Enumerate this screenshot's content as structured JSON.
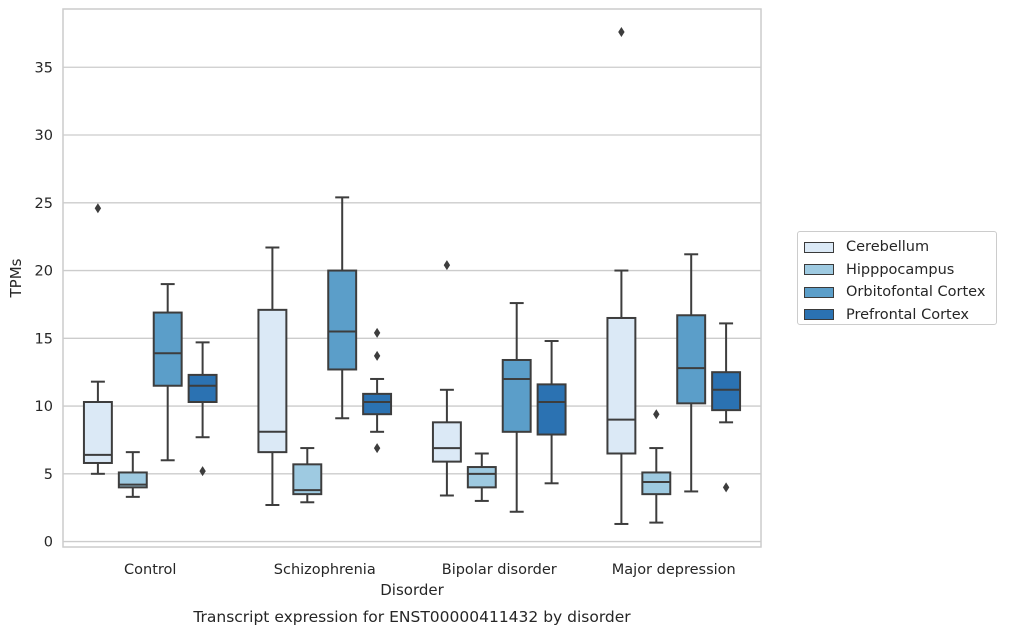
{
  "chart_data": {
    "type": "box",
    "title": "Transcript expression for ENST00000411432 by disorder",
    "xlabel": "Disorder",
    "ylabel": "TPMs",
    "ylim": [
      -0.4,
      39.3
    ],
    "yticks": [
      0,
      5,
      10,
      15,
      20,
      25,
      30,
      35
    ],
    "categories": [
      "Control",
      "Schizophrenia",
      "Bipolar disorder",
      "Major depression"
    ],
    "grid": "horizontal",
    "legend_position": "right",
    "series": [
      {
        "name": "Cerebellum",
        "color": "#dbe9f6",
        "boxes": [
          {
            "whislo": 5.0,
            "q1": 5.8,
            "med": 6.4,
            "q3": 10.3,
            "whishi": 11.8,
            "fliers": [
              24.6
            ]
          },
          {
            "whislo": 2.7,
            "q1": 6.6,
            "med": 8.1,
            "q3": 17.1,
            "whishi": 21.7,
            "fliers": []
          },
          {
            "whislo": 3.4,
            "q1": 5.9,
            "med": 6.9,
            "q3": 8.8,
            "whishi": 11.2,
            "fliers": [
              20.4
            ]
          },
          {
            "whislo": 1.3,
            "q1": 6.5,
            "med": 9.0,
            "q3": 16.5,
            "whishi": 20.0,
            "fliers": [
              37.6
            ]
          }
        ]
      },
      {
        "name": "Hipppocampus",
        "color": "#9ecae1",
        "boxes": [
          {
            "whislo": 3.3,
            "q1": 4.0,
            "med": 4.2,
            "q3": 5.1,
            "whishi": 6.6,
            "fliers": []
          },
          {
            "whislo": 2.9,
            "q1": 3.5,
            "med": 3.8,
            "q3": 5.7,
            "whishi": 6.9,
            "fliers": []
          },
          {
            "whislo": 3.0,
            "q1": 4.0,
            "med": 5.0,
            "q3": 5.5,
            "whishi": 6.5,
            "fliers": []
          },
          {
            "whislo": 1.4,
            "q1": 3.5,
            "med": 4.4,
            "q3": 5.1,
            "whishi": 6.9,
            "fliers": [
              9.4
            ]
          }
        ]
      },
      {
        "name": "Orbitofontal Cortex",
        "color": "#5b9ec9",
        "boxes": [
          {
            "whislo": 6.0,
            "q1": 11.5,
            "med": 13.9,
            "q3": 16.9,
            "whishi": 19.0,
            "fliers": []
          },
          {
            "whislo": 9.1,
            "q1": 12.7,
            "med": 15.5,
            "q3": 20.0,
            "whishi": 25.4,
            "fliers": []
          },
          {
            "whislo": 2.2,
            "q1": 8.1,
            "med": 12.0,
            "q3": 13.4,
            "whishi": 17.6,
            "fliers": []
          },
          {
            "whislo": 3.7,
            "q1": 10.2,
            "med": 12.8,
            "q3": 16.7,
            "whishi": 21.2,
            "fliers": []
          }
        ]
      },
      {
        "name": "Prefrontal Cortex",
        "color": "#2b72b2",
        "boxes": [
          {
            "whislo": 7.7,
            "q1": 10.3,
            "med": 11.5,
            "q3": 12.3,
            "whishi": 14.7,
            "fliers": [
              5.2
            ]
          },
          {
            "whislo": 8.1,
            "q1": 9.4,
            "med": 10.3,
            "q3": 10.9,
            "whishi": 12.0,
            "fliers": [
              15.4,
              13.7,
              6.9
            ]
          },
          {
            "whislo": 4.3,
            "q1": 7.9,
            "med": 10.3,
            "q3": 11.6,
            "whishi": 14.8,
            "fliers": []
          },
          {
            "whislo": 8.8,
            "q1": 9.7,
            "med": 11.2,
            "q3": 12.5,
            "whishi": 16.1,
            "fliers": [
              4.0
            ]
          }
        ]
      }
    ]
  }
}
